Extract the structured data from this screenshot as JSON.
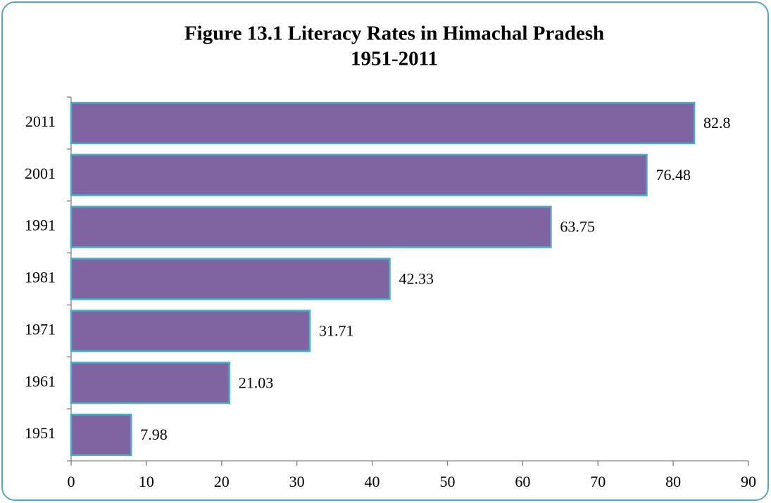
{
  "chart_data": {
    "type": "bar",
    "orientation": "horizontal",
    "title": [
      "Figure 13.1 Literacy  Rates in Himachal Pradesh",
      "1951-2011"
    ],
    "categories": [
      "1951",
      "1961",
      "1971",
      "1981",
      "1991",
      "2001",
      "2011"
    ],
    "values": [
      7.98,
      21.03,
      31.71,
      42.33,
      63.75,
      76.48,
      82.8
    ],
    "color": "#8064a2",
    "edge_color": "#4bacc6",
    "xlim": [
      0,
      90
    ],
    "xticks": [
      0,
      10,
      20,
      30,
      40,
      50,
      60,
      70,
      80,
      90
    ],
    "grid": false
  }
}
